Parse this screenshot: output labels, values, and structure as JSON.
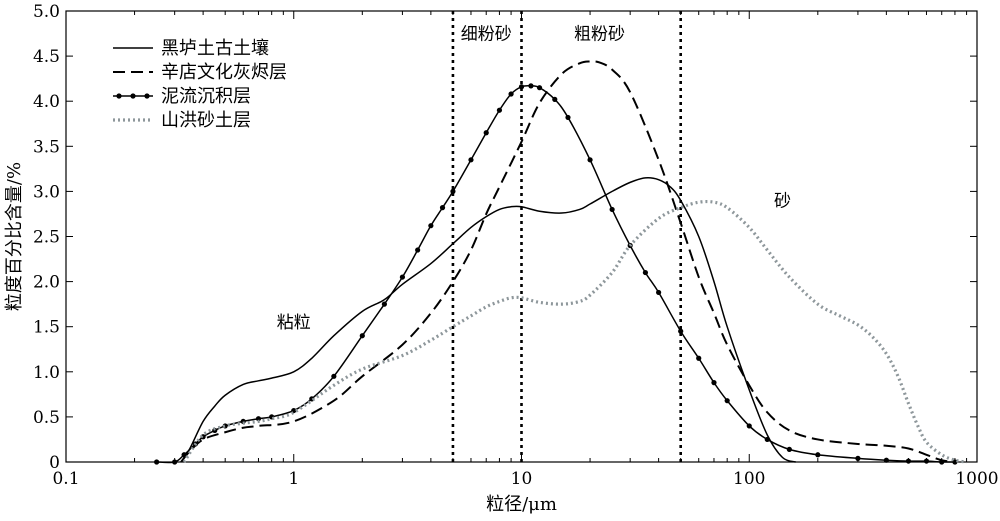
{
  "chart_data": {
    "type": "line",
    "xlabel": "粒径/μm",
    "ylabel": "粒度百分比含量/%",
    "xscale": "log",
    "xlim": [
      0.1,
      1000
    ],
    "ylim": [
      0,
      5.0
    ],
    "x_ticks": [
      {
        "value": 0.1,
        "label": "0.1"
      },
      {
        "value": 1,
        "label": "1"
      },
      {
        "value": 10,
        "label": "10"
      },
      {
        "value": 100,
        "label": "100"
      },
      {
        "value": 1000,
        "label": "1000"
      }
    ],
    "y_ticks": [
      {
        "value": 0,
        "label": "0"
      },
      {
        "value": 0.5,
        "label": "0.5"
      },
      {
        "value": 1.0,
        "label": "1.0"
      },
      {
        "value": 1.5,
        "label": "1.5"
      },
      {
        "value": 2.0,
        "label": "2.0"
      },
      {
        "value": 2.5,
        "label": "2.5"
      },
      {
        "value": 3.0,
        "label": "3.0"
      },
      {
        "value": 3.5,
        "label": "3.5"
      },
      {
        "value": 4.0,
        "label": "4.0"
      },
      {
        "value": 4.5,
        "label": "4.5"
      },
      {
        "value": 5.0,
        "label": "5.0"
      }
    ],
    "grid": false,
    "legend_position": "top-left",
    "boundaries": [
      {
        "x": 5,
        "style": "dotted"
      },
      {
        "x": 10,
        "style": "dotted"
      },
      {
        "x": 50,
        "style": "dotted"
      }
    ],
    "region_labels": [
      {
        "text": "粘粒",
        "x": 1.0,
        "y": 1.55
      },
      {
        "text": "细粉砂",
        "x": 7.0,
        "y": 4.75
      },
      {
        "text": "粗粉砂",
        "x": 22,
        "y": 4.75
      },
      {
        "text": "砂",
        "x": 140,
        "y": 2.9
      }
    ],
    "series": [
      {
        "name": "黑垆土古土壤",
        "style": "solid",
        "marker": "none",
        "color": "#000000",
        "x": [
          0.32,
          0.35,
          0.4,
          0.45,
          0.5,
          0.6,
          0.7,
          0.8,
          1.0,
          1.2,
          1.5,
          2.0,
          2.5,
          3.0,
          4.0,
          5.0,
          6.0,
          7.0,
          8.0,
          9.0,
          10,
          12,
          15,
          18,
          20,
          25,
          30,
          35,
          40,
          45,
          50,
          60,
          70,
          80,
          100,
          120,
          140,
          160
        ],
        "y": [
          0.0,
          0.15,
          0.45,
          0.62,
          0.74,
          0.86,
          0.9,
          0.93,
          1.0,
          1.15,
          1.4,
          1.67,
          1.8,
          1.97,
          2.2,
          2.42,
          2.6,
          2.72,
          2.8,
          2.83,
          2.83,
          2.78,
          2.76,
          2.8,
          2.86,
          3.0,
          3.1,
          3.15,
          3.13,
          3.05,
          2.9,
          2.5,
          2.0,
          1.5,
          0.8,
          0.3,
          0.05,
          0.0
        ]
      },
      {
        "name": "辛店文化灰烬层",
        "style": "dashed",
        "marker": "none",
        "color": "#000000",
        "x": [
          0.32,
          0.35,
          0.4,
          0.5,
          0.6,
          0.7,
          1.0,
          1.5,
          2.0,
          3.0,
          4.0,
          5.0,
          6.0,
          7.0,
          8.0,
          10,
          12,
          15,
          18,
          20,
          22,
          25,
          30,
          40,
          50,
          60,
          70,
          80,
          100,
          120,
          150,
          200,
          300,
          400,
          500,
          600,
          700,
          800
        ],
        "y": [
          0.0,
          0.12,
          0.25,
          0.33,
          0.38,
          0.4,
          0.45,
          0.68,
          0.95,
          1.3,
          1.65,
          2.0,
          2.35,
          2.75,
          3.05,
          3.55,
          3.98,
          4.3,
          4.42,
          4.44,
          4.43,
          4.35,
          4.1,
          3.35,
          2.65,
          2.05,
          1.65,
          1.3,
          0.85,
          0.55,
          0.35,
          0.25,
          0.2,
          0.18,
          0.15,
          0.08,
          0.02,
          0.0
        ]
      },
      {
        "name": "泥流沉积层",
        "style": "solid",
        "marker": "dot",
        "color": "#000000",
        "x": [
          0.25,
          0.3,
          0.33,
          0.37,
          0.4,
          0.45,
          0.5,
          0.6,
          0.7,
          0.8,
          1.0,
          1.2,
          1.5,
          2.0,
          2.5,
          3.0,
          3.5,
          4.0,
          4.5,
          5.0,
          6.0,
          7.0,
          8.0,
          9.0,
          10,
          11,
          12,
          14,
          16,
          20,
          25,
          30,
          35,
          40,
          50,
          60,
          70,
          80,
          100,
          120,
          150,
          200,
          300,
          400,
          500,
          600,
          700,
          800
        ],
        "y": [
          0.0,
          0.0,
          0.08,
          0.2,
          0.28,
          0.35,
          0.4,
          0.45,
          0.48,
          0.5,
          0.57,
          0.7,
          0.95,
          1.4,
          1.75,
          2.05,
          2.35,
          2.62,
          2.82,
          3.0,
          3.35,
          3.65,
          3.9,
          4.08,
          4.16,
          4.17,
          4.15,
          4.02,
          3.82,
          3.35,
          2.8,
          2.4,
          2.1,
          1.88,
          1.45,
          1.15,
          0.88,
          0.68,
          0.4,
          0.25,
          0.14,
          0.08,
          0.04,
          0.02,
          0.01,
          0.01,
          0.0,
          0.0
        ]
      },
      {
        "name": "山洪砂土层",
        "style": "dotted",
        "marker": "none",
        "color": "#8e979b",
        "x": [
          0.33,
          0.4,
          0.5,
          0.6,
          0.7,
          0.8,
          1.0,
          1.5,
          2.0,
          3.0,
          4.0,
          5.0,
          6.0,
          7.0,
          8.0,
          9.0,
          10,
          12,
          15,
          18,
          20,
          25,
          30,
          40,
          50,
          60,
          70,
          80,
          100,
          120,
          150,
          200,
          250,
          300,
          350,
          400,
          450,
          500,
          550,
          600,
          700,
          800,
          900
        ],
        "y": [
          0.0,
          0.3,
          0.4,
          0.43,
          0.45,
          0.48,
          0.55,
          0.85,
          1.03,
          1.18,
          1.35,
          1.5,
          1.62,
          1.72,
          1.78,
          1.82,
          1.82,
          1.77,
          1.75,
          1.78,
          1.85,
          2.1,
          2.4,
          2.7,
          2.82,
          2.88,
          2.88,
          2.82,
          2.6,
          2.35,
          2.05,
          1.75,
          1.62,
          1.52,
          1.38,
          1.2,
          0.95,
          0.65,
          0.4,
          0.22,
          0.08,
          0.02,
          0.0
        ]
      }
    ]
  }
}
